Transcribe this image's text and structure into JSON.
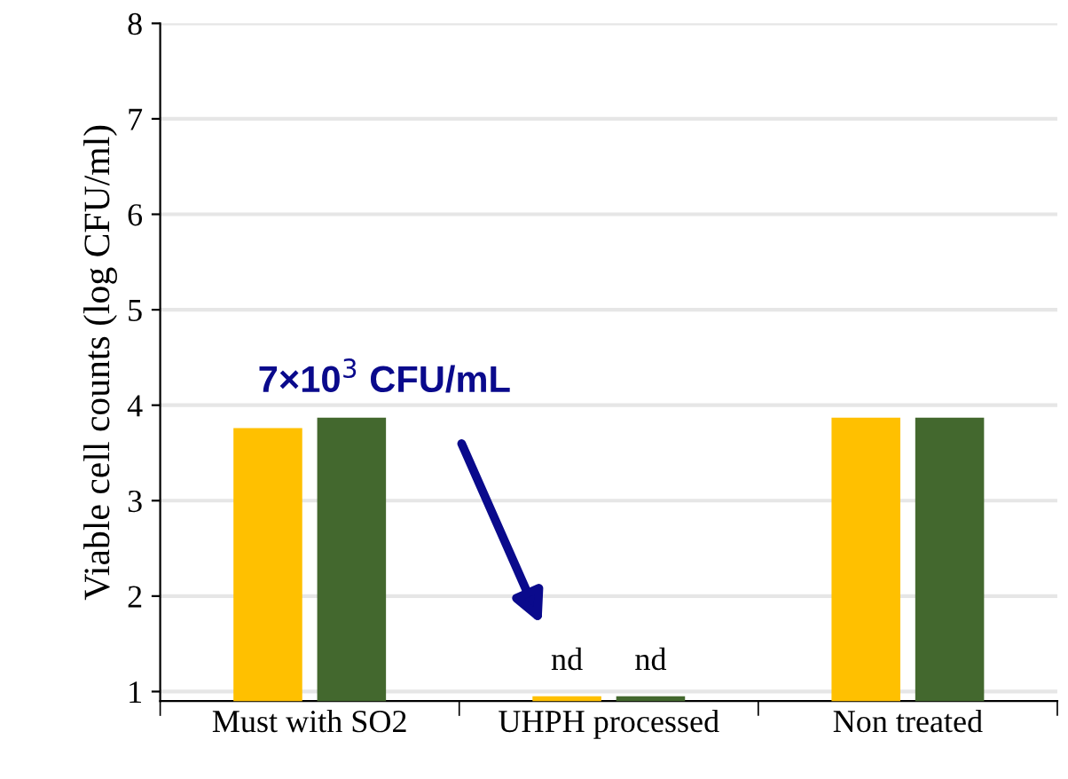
{
  "chart_data": {
    "type": "bar",
    "ylabel": "Viable cell counts (log CFU/ml)",
    "categories": [
      "Must with SO2",
      "UHPH processed",
      "Non treated"
    ],
    "series": [
      {
        "color": "#ffc000",
        "values": [
          3.76,
          0.95,
          3.87
        ],
        "value_labels": [
          null,
          "nd",
          null
        ]
      },
      {
        "color": "#43682e",
        "values": [
          3.87,
          0.95,
          3.87
        ],
        "value_labels": [
          null,
          "nd",
          null
        ]
      }
    ],
    "ylim": [
      0.9,
      8
    ],
    "yticks": [
      1,
      2,
      3,
      4,
      5,
      6,
      7,
      8
    ],
    "grid": "y",
    "legend": false,
    "annotations": [
      "7×10$^{3}$ CFU/mL"
    ]
  }
}
